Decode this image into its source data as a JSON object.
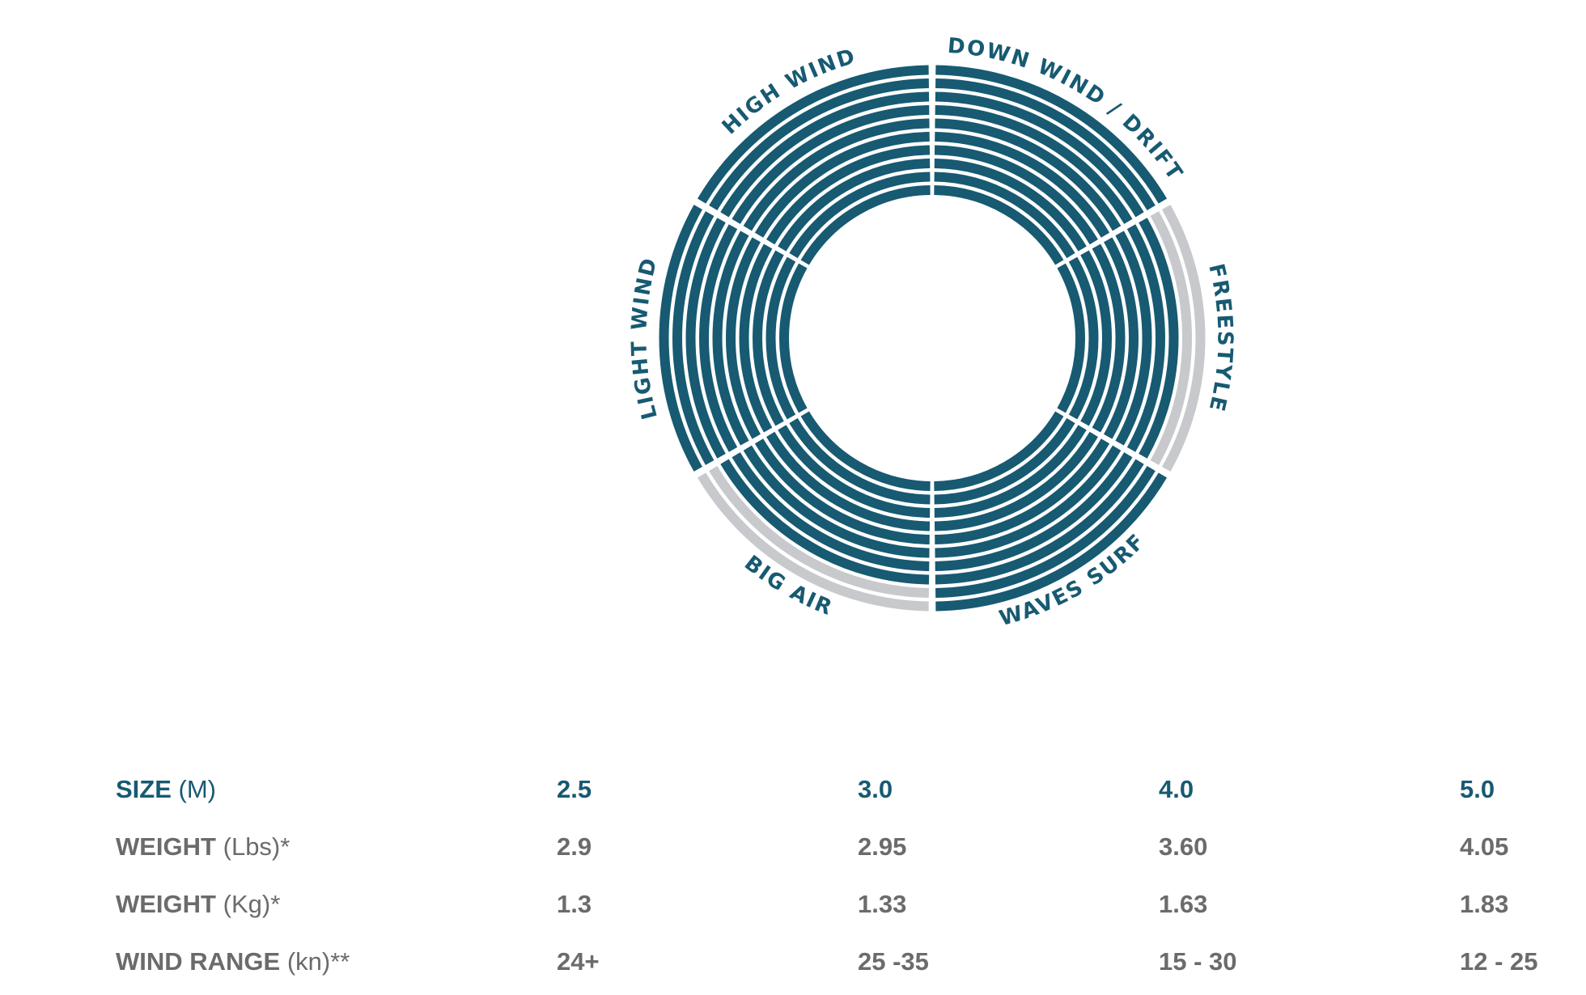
{
  "colors": {
    "filled": "#175a72",
    "empty": "#c7c9cc",
    "text_dark": "#175a72",
    "text_grey": "#6b6b6b"
  },
  "chart_data": {
    "type": "radial-rating",
    "max_rating": 10,
    "segments": [
      {
        "name": "DOWN WIND / DRIFT",
        "rating": 10
      },
      {
        "name": "FREESTYLE",
        "rating": 8
      },
      {
        "name": "WAVES SURF",
        "rating": 10
      },
      {
        "name": "BIG AIR",
        "rating": 8
      },
      {
        "name": "LIGHT WIND",
        "rating": 10
      },
      {
        "name": "HIGH WIND",
        "rating": 10
      }
    ]
  },
  "specs": {
    "rows": [
      {
        "label": "SIZE",
        "unit": "(M)",
        "values": [
          "2.5",
          "3.0",
          "4.0",
          "5.0"
        ]
      },
      {
        "label": "WEIGHT",
        "unit": "(Lbs)*",
        "values": [
          "2.9",
          "2.95",
          "3.60",
          "4.05"
        ]
      },
      {
        "label": "WEIGHT",
        "unit": "(Kg)*",
        "values": [
          "1.3",
          "1.33",
          "1.63",
          "1.83"
        ]
      },
      {
        "label": "WIND RANGE",
        "unit": "(kn)**",
        "values": [
          "24+",
          "25 -35",
          "15 - 30",
          "12 - 25"
        ]
      }
    ]
  }
}
